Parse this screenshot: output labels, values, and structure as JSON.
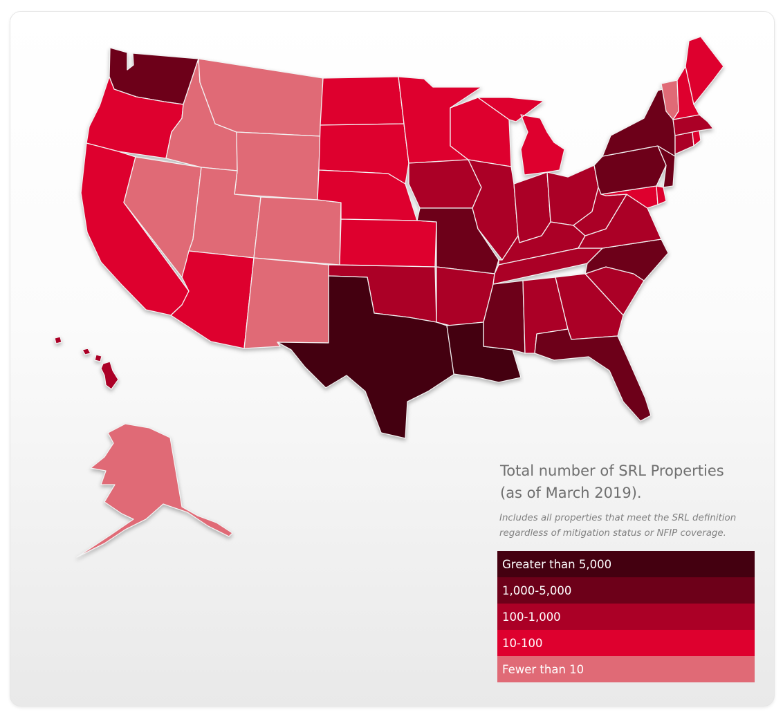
{
  "legend": {
    "title_line1": "Total number of SRL Properties",
    "title_line2": "(as of March 2019).",
    "note": "Includes all properties that meet the SRL definition regardless of mitigation status or NFIP coverage.",
    "categories": [
      {
        "label": "Greater than 5,000",
        "color": "#440010"
      },
      {
        "label": "1,000-5,000",
        "color": "#6d0019"
      },
      {
        "label": "100-1,000",
        "color": "#ab0026"
      },
      {
        "label": "10-100",
        "color": "#de002e"
      },
      {
        "label": "Fewer than 10",
        "color": "#e06a76"
      }
    ]
  },
  "states": [
    {
      "id": "WA",
      "category": 1
    },
    {
      "id": "OR",
      "category": 3
    },
    {
      "id": "CA",
      "category": 3
    },
    {
      "id": "ID",
      "category": 4
    },
    {
      "id": "NV",
      "category": 4
    },
    {
      "id": "MT",
      "category": 4
    },
    {
      "id": "WY",
      "category": 4
    },
    {
      "id": "UT",
      "category": 4
    },
    {
      "id": "AZ",
      "category": 3
    },
    {
      "id": "CO",
      "category": 4
    },
    {
      "id": "NM",
      "category": 4
    },
    {
      "id": "ND",
      "category": 3
    },
    {
      "id": "SD",
      "category": 3
    },
    {
      "id": "NE",
      "category": 3
    },
    {
      "id": "KS",
      "category": 3
    },
    {
      "id": "OK",
      "category": 2
    },
    {
      "id": "TX",
      "category": 0
    },
    {
      "id": "MN",
      "category": 3
    },
    {
      "id": "IA",
      "category": 2
    },
    {
      "id": "MO",
      "category": 1
    },
    {
      "id": "AR",
      "category": 2
    },
    {
      "id": "LA",
      "category": 0
    },
    {
      "id": "WI",
      "category": 3
    },
    {
      "id": "MI",
      "category": 3
    },
    {
      "id": "IL",
      "category": 2
    },
    {
      "id": "IN",
      "category": 2
    },
    {
      "id": "OH",
      "category": 2
    },
    {
      "id": "KY",
      "category": 2
    },
    {
      "id": "TN",
      "category": 2
    },
    {
      "id": "MS",
      "category": 1
    },
    {
      "id": "AL",
      "category": 2
    },
    {
      "id": "GA",
      "category": 2
    },
    {
      "id": "FL",
      "category": 1
    },
    {
      "id": "SC",
      "category": 2
    },
    {
      "id": "NC",
      "category": 1
    },
    {
      "id": "VA",
      "category": 2
    },
    {
      "id": "WV",
      "category": 2
    },
    {
      "id": "MD",
      "category": 3
    },
    {
      "id": "DE",
      "category": 3
    },
    {
      "id": "PA",
      "category": 1
    },
    {
      "id": "NJ",
      "category": 1
    },
    {
      "id": "NY",
      "category": 1
    },
    {
      "id": "CT",
      "category": 2
    },
    {
      "id": "RI",
      "category": 3
    },
    {
      "id": "MA",
      "category": 2
    },
    {
      "id": "VT",
      "category": 4
    },
    {
      "id": "NH",
      "category": 3
    },
    {
      "id": "ME",
      "category": 3
    },
    {
      "id": "AK",
      "category": 4
    },
    {
      "id": "HI",
      "category": 2
    }
  ]
}
